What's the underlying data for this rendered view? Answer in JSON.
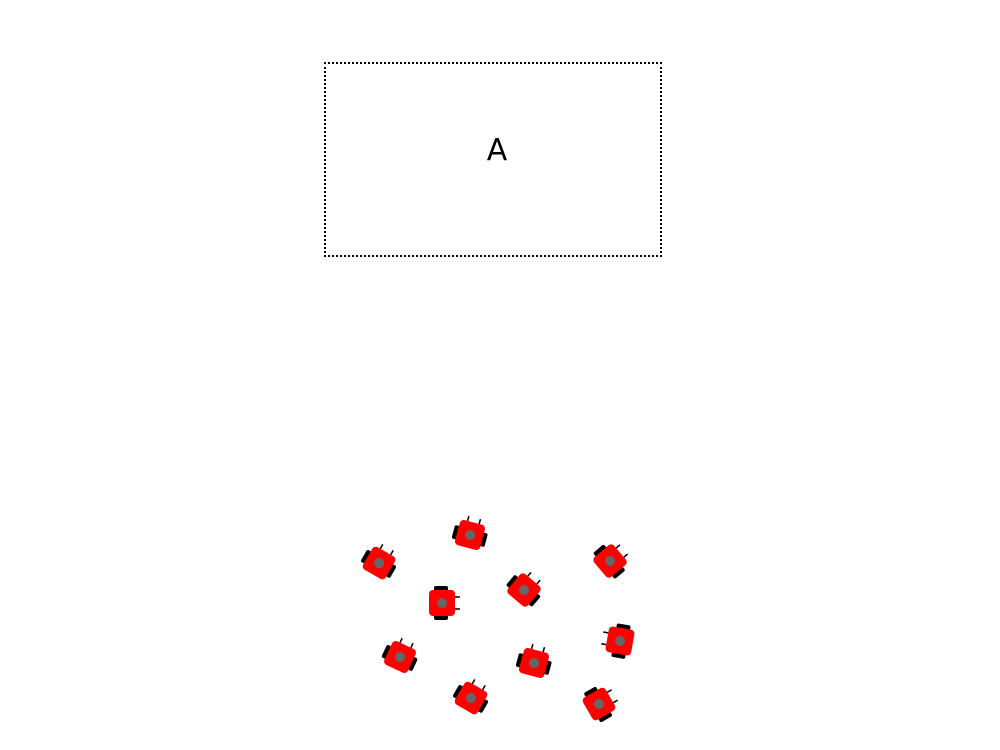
{
  "zone": {
    "label": "A"
  },
  "robot_count": 10,
  "colors": {
    "robot_body": "#ff0000",
    "robot_dome": "#666666",
    "robot_wheels": "#000000",
    "zone_border": "#000000"
  }
}
